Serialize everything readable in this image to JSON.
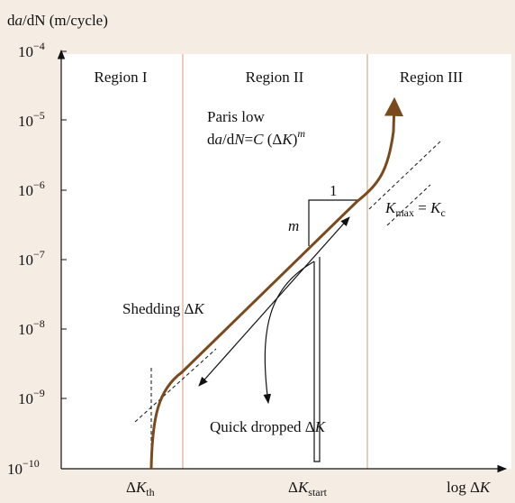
{
  "chart_data": {
    "type": "line",
    "title": "",
    "ylabel_parts": {
      "pre": "d",
      "italic": "a",
      "post": "/dN (m/cycle)"
    },
    "xlabel_parts": {
      "pre": "log Δ",
      "italic": "K"
    },
    "y_ticks": [
      {
        "base": "10",
        "exp": "−4"
      },
      {
        "base": "10",
        "exp": "−5"
      },
      {
        "base": "10",
        "exp": "−6"
      },
      {
        "base": "10",
        "exp": "−7"
      },
      {
        "base": "10",
        "exp": "−8"
      },
      {
        "base": "10",
        "exp": "−9"
      },
      {
        "base": "10",
        "exp": "−10"
      }
    ],
    "x_ticks": {
      "threshold": {
        "pre": "Δ",
        "italic": "K",
        "sub": "th"
      },
      "start": {
        "pre": "Δ",
        "italic": "K",
        "sub": "start"
      }
    },
    "regions": [
      "Region I",
      "Region II",
      "Region III"
    ],
    "annotations": {
      "paris_line1": "Paris low",
      "paris_line2_parts": {
        "d": "d",
        "a": "a",
        "slash": "/d",
        "N": "N",
        "eq": "=",
        "C": "C",
        "paren_open": " (Δ",
        "K": "K",
        "paren_close": ")",
        "m": "m"
      },
      "slope_run": "1",
      "slope_rise": "m",
      "kmax_parts": {
        "K1": "K",
        "sub1": "max",
        "eq": " = ",
        "K2": "K",
        "sub2": "c"
      },
      "shedding_parts": {
        "pre": "Shedding Δ",
        "italic": "K"
      },
      "quick_dropped_parts": {
        "pre": "Quick dropped Δ",
        "italic": "K"
      }
    },
    "colors": {
      "background": "#f5ede3",
      "curve": "#7a4a1e",
      "region_divider": "#e3b8a0",
      "axis": "#111111"
    }
  }
}
